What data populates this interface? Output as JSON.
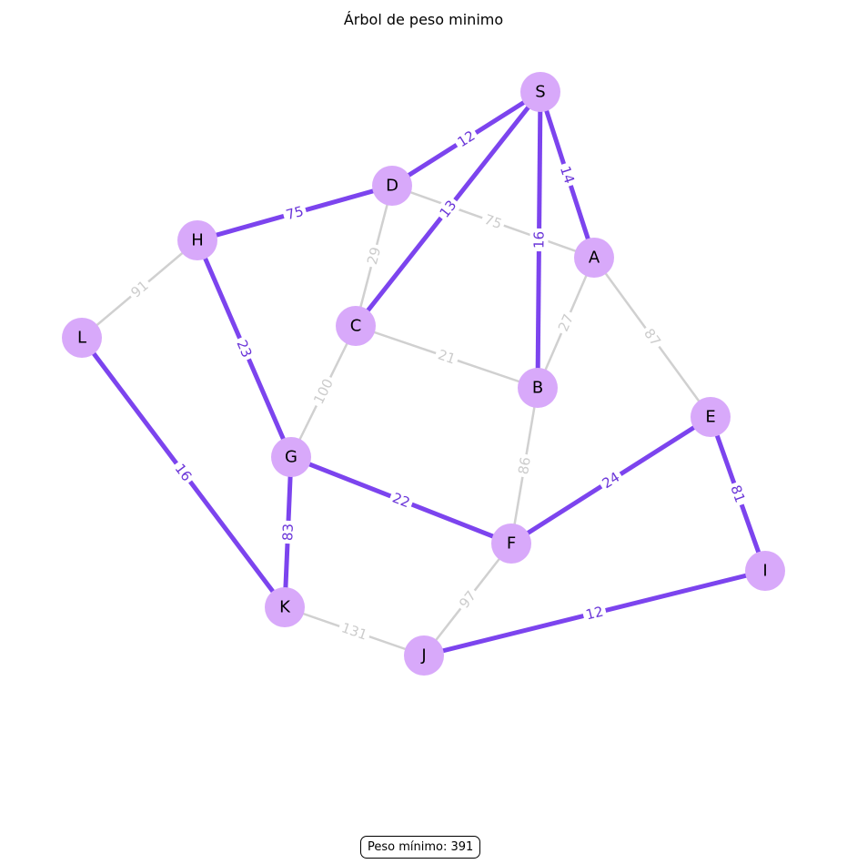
{
  "title": "Árbol de peso minimo",
  "footer": {
    "label": "Peso mínimo: 391"
  },
  "colors": {
    "node_fill": "#d8a9fa",
    "tree_edge": "#7c44ee",
    "tree_label": "#6a35d8",
    "other_edge": "#d0d0d0",
    "other_label": "#cccccc"
  },
  "graph": {
    "nodes": [
      {
        "id": "S"
      },
      {
        "id": "D"
      },
      {
        "id": "A"
      },
      {
        "id": "H"
      },
      {
        "id": "C"
      },
      {
        "id": "L"
      },
      {
        "id": "B"
      },
      {
        "id": "E"
      },
      {
        "id": "G"
      },
      {
        "id": "F"
      },
      {
        "id": "I"
      },
      {
        "id": "K"
      },
      {
        "id": "J"
      }
    ],
    "edges": [
      {
        "from": "D",
        "to": "A",
        "weight": "75",
        "in_tree": false
      },
      {
        "from": "D",
        "to": "C",
        "weight": "29",
        "in_tree": false
      },
      {
        "from": "H",
        "to": "L",
        "weight": "91",
        "in_tree": false
      },
      {
        "from": "A",
        "to": "B",
        "weight": "27",
        "in_tree": false
      },
      {
        "from": "A",
        "to": "E",
        "weight": "87",
        "in_tree": false
      },
      {
        "from": "C",
        "to": "B",
        "weight": "21",
        "in_tree": false
      },
      {
        "from": "C",
        "to": "G",
        "weight": "100",
        "in_tree": false
      },
      {
        "from": "B",
        "to": "F",
        "weight": "86",
        "in_tree": false
      },
      {
        "from": "F",
        "to": "J",
        "weight": "97",
        "in_tree": false
      },
      {
        "from": "K",
        "to": "J",
        "weight": "131",
        "in_tree": false
      },
      {
        "from": "S",
        "to": "D",
        "weight": "12",
        "in_tree": true
      },
      {
        "from": "S",
        "to": "A",
        "weight": "14",
        "in_tree": true
      },
      {
        "from": "S",
        "to": "C",
        "weight": "13",
        "in_tree": true
      },
      {
        "from": "S",
        "to": "B",
        "weight": "16",
        "in_tree": true
      },
      {
        "from": "D",
        "to": "H",
        "weight": "75",
        "in_tree": true
      },
      {
        "from": "H",
        "to": "G",
        "weight": "23",
        "in_tree": true
      },
      {
        "from": "L",
        "to": "K",
        "weight": "16",
        "in_tree": true
      },
      {
        "from": "G",
        "to": "F",
        "weight": "22",
        "in_tree": true
      },
      {
        "from": "G",
        "to": "K",
        "weight": "83",
        "in_tree": true
      },
      {
        "from": "F",
        "to": "E",
        "weight": "24",
        "in_tree": true
      },
      {
        "from": "E",
        "to": "I",
        "weight": "81",
        "in_tree": true
      },
      {
        "from": "I",
        "to": "J",
        "weight": "12",
        "in_tree": true
      }
    ]
  }
}
